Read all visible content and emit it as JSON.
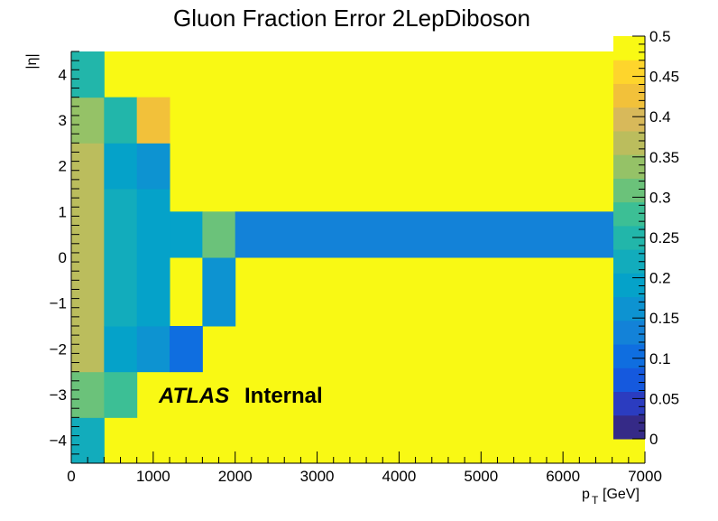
{
  "chart_data": {
    "type": "heatmap",
    "title": "Gluon Fraction Error 2LepDiboson",
    "xlabel_main": "p",
    "xlabel_sub": "T",
    "xlabel_unit": "[GeV]",
    "ylabel": "|η|",
    "xlim": [
      0,
      7000
    ],
    "ylim": [
      -4.5,
      4.5
    ],
    "zlim": [
      0,
      0.5
    ],
    "x_ticks": [
      0,
      1000,
      2000,
      3000,
      4000,
      5000,
      6000,
      7000
    ],
    "x_tick_labels": [
      "0",
      "1000",
      "2000",
      "3000",
      "4000",
      "5000",
      "6000",
      "7000"
    ],
    "y_ticks": [
      -4,
      -3,
      -2,
      -1,
      0,
      1,
      2,
      3,
      4
    ],
    "y_tick_labels": [
      "−4",
      "−3",
      "−2",
      "−1",
      "0",
      "1",
      "2",
      "3",
      "4"
    ],
    "z_ticks": [
      0,
      0.05,
      0.1,
      0.15,
      0.2,
      0.25,
      0.3,
      0.35,
      0.4,
      0.45,
      0.5
    ],
    "z_tick_labels": [
      "0",
      "0.05",
      "0.1",
      "0.15",
      "0.2",
      "0.25",
      "0.3",
      "0.35",
      "0.4",
      "0.45",
      "0.5"
    ],
    "x_edges": [
      0,
      400,
      800,
      1200,
      1600,
      2000,
      7000
    ],
    "y_edges": [
      -4.5,
      -3.5,
      -2.5,
      -1.5,
      -0.5,
      0,
      1,
      1.5,
      2.5,
      3.5,
      4.5
    ],
    "cells": [
      {
        "x0": 0,
        "x1": 400,
        "y0": -4.5,
        "y1": -3.5,
        "value": 0.22
      },
      {
        "x0": 0,
        "x1": 400,
        "y0": -3.5,
        "y1": -2.5,
        "value": 0.3
      },
      {
        "x0": 0,
        "x1": 400,
        "y0": -2.5,
        "y1": 1.5,
        "value": 0.37
      },
      {
        "x0": 0,
        "x1": 400,
        "y0": 1.5,
        "y1": 2.5,
        "value": 0.37
      },
      {
        "x0": 0,
        "x1": 400,
        "y0": 2.5,
        "y1": 3.5,
        "value": 0.33
      },
      {
        "x0": 0,
        "x1": 400,
        "y0": 3.5,
        "y1": 4.5,
        "value": 0.25
      },
      {
        "x0": 400,
        "x1": 800,
        "y0": -3.5,
        "y1": -2.5,
        "value": 0.28
      },
      {
        "x0": 400,
        "x1": 800,
        "y0": -2.5,
        "y1": -1.5,
        "value": 0.18
      },
      {
        "x0": 400,
        "x1": 800,
        "y0": -1.5,
        "y1": 1.5,
        "value": 0.22
      },
      {
        "x0": 400,
        "x1": 800,
        "y0": 1.5,
        "y1": 2.5,
        "value": 0.18
      },
      {
        "x0": 400,
        "x1": 800,
        "y0": 2.5,
        "y1": 3.5,
        "value": 0.25
      },
      {
        "x0": 800,
        "x1": 1200,
        "y0": -2.5,
        "y1": -1.5,
        "value": 0.16
      },
      {
        "x0": 800,
        "x1": 1200,
        "y0": -1.5,
        "y1": 1.5,
        "value": 0.2
      },
      {
        "x0": 800,
        "x1": 1200,
        "y0": 1.5,
        "y1": 2.5,
        "value": 0.16
      },
      {
        "x0": 800,
        "x1": 1200,
        "y0": 2.5,
        "y1": 3.5,
        "value": 0.43
      },
      {
        "x0": 1200,
        "x1": 1600,
        "y0": -2.5,
        "y1": -1.5,
        "value": 0.09
      },
      {
        "x0": 1200,
        "x1": 1600,
        "y0": 0,
        "y1": 1,
        "value": 0.2
      },
      {
        "x0": 1600,
        "x1": 2000,
        "y0": -1.5,
        "y1": 0,
        "value": 0.16
      },
      {
        "x0": 1600,
        "x1": 2000,
        "y0": 0,
        "y1": 1,
        "value": 0.32
      },
      {
        "x0": 2000,
        "x1": 7000,
        "y0": 0,
        "y1": 1,
        "value": 0.11
      }
    ],
    "background_value": 0.5,
    "annotation_bold": "ATLAS",
    "annotation_text": "Internal",
    "palette": [
      "#352a87",
      "#2b3cc0",
      "#1559de",
      "#0f6ee0",
      "#1382d8",
      "#0d93d1",
      "#05a2c9",
      "#12acbc",
      "#22b6aa",
      "#3cbf95",
      "#6bc27a",
      "#95c267",
      "#bbbd5d",
      "#d8b95a",
      "#f2c13a",
      "#fed52c",
      "#f9f914"
    ]
  }
}
